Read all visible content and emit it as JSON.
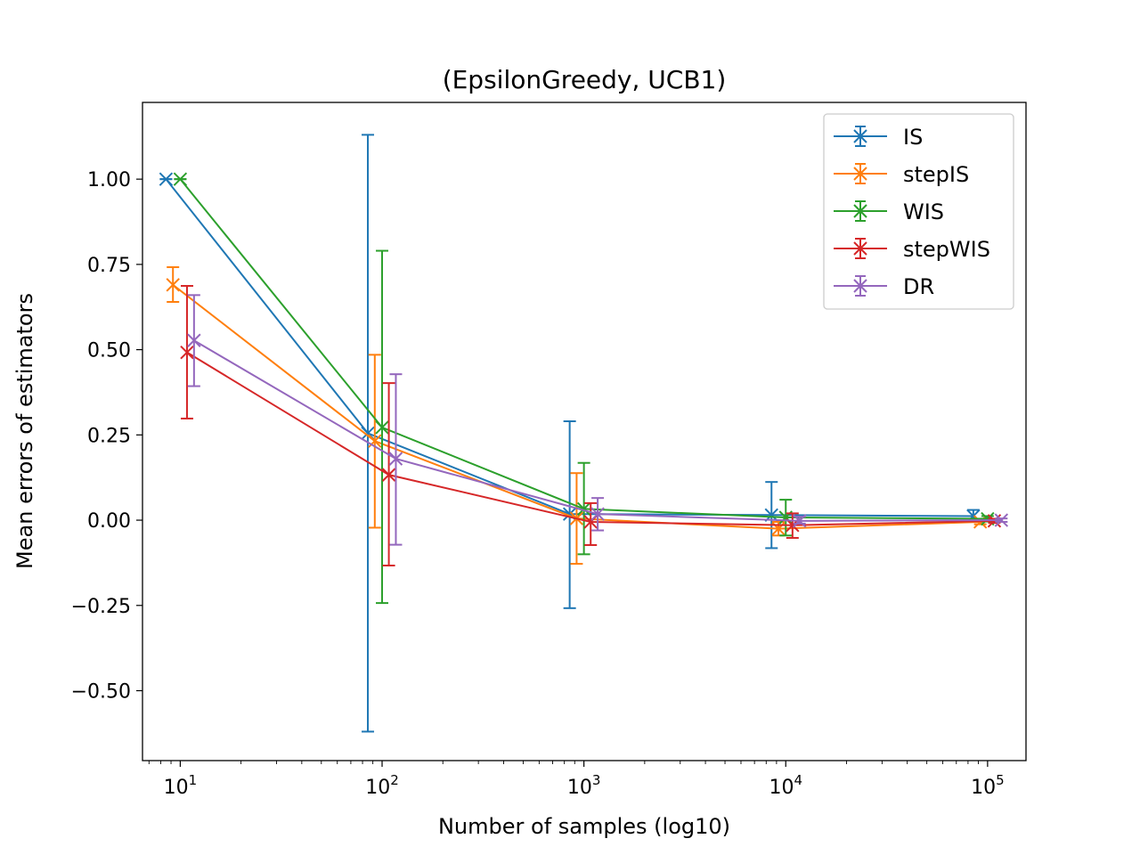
{
  "chart_data": {
    "type": "line",
    "title": "(EpsilonGreedy, UCB1)",
    "xlabel": "Number of samples (log10)",
    "ylabel": "Mean errors of estimators",
    "xscale": "log",
    "xlim": [
      6.5,
      155000
    ],
    "ylim": [
      -0.705,
      1.225
    ],
    "x_ticks": [
      {
        "base": "10",
        "exp": "1",
        "value": 10
      },
      {
        "base": "10",
        "exp": "2",
        "value": 100
      },
      {
        "base": "10",
        "exp": "3",
        "value": 1000
      },
      {
        "base": "10",
        "exp": "4",
        "value": 10000
      },
      {
        "base": "10",
        "exp": "5",
        "value": 100000
      }
    ],
    "y_ticks": [
      {
        "label": "1.00",
        "value": 1.0
      },
      {
        "label": "0.75",
        "value": 0.75
      },
      {
        "label": "0.50",
        "value": 0.5
      },
      {
        "label": "0.25",
        "value": 0.25
      },
      {
        "label": "0.00",
        "value": 0.0
      },
      {
        "label": "−0.25",
        "value": -0.25
      },
      {
        "label": "−0.50",
        "value": -0.5
      }
    ],
    "legend_position": "top-right",
    "grid": false,
    "series": [
      {
        "name": "IS",
        "color": "#1f77b4",
        "x": [
          8.5,
          85,
          850,
          8500,
          85000
        ],
        "y": [
          1.0,
          0.255,
          0.018,
          0.015,
          0.012
        ],
        "err_low": [
          1.0,
          -0.62,
          -0.258,
          -0.082,
          -0.002
        ],
        "err_high": [
          1.0,
          1.13,
          0.29,
          0.112,
          0.03
        ]
      },
      {
        "name": "stepIS",
        "color": "#ff7f0e",
        "x": [
          9.2,
          92,
          920,
          9200,
          92000
        ],
        "y": [
          0.69,
          0.232,
          0.005,
          -0.025,
          -0.005
        ],
        "err_low": [
          0.64,
          -0.022,
          -0.128,
          -0.045,
          -0.012
        ],
        "err_high": [
          0.742,
          0.485,
          0.138,
          -0.005,
          0.002
        ]
      },
      {
        "name": "WIS",
        "color": "#2ca02c",
        "x": [
          10,
          100,
          1000,
          10000,
          100000
        ],
        "y": [
          1.0,
          0.272,
          0.033,
          0.008,
          0.004
        ],
        "err_low": [
          1.0,
          -0.243,
          -0.1,
          -0.045,
          -0.004
        ],
        "err_high": [
          1.0,
          0.79,
          0.168,
          0.06,
          0.012
        ]
      },
      {
        "name": "stepWIS",
        "color": "#d62728",
        "x": [
          10.8,
          108,
          1080,
          10800,
          108000
        ],
        "y": [
          0.492,
          0.133,
          -0.005,
          -0.015,
          -0.002
        ],
        "err_low": [
          0.298,
          -0.133,
          -0.073,
          -0.052,
          -0.008
        ],
        "err_high": [
          0.687,
          0.402,
          0.05,
          0.02,
          0.004
        ]
      },
      {
        "name": "DR",
        "color": "#9467bd",
        "x": [
          11.7,
          117,
          1170,
          11700,
          117000
        ],
        "y": [
          0.527,
          0.18,
          0.018,
          -0.002,
          0.0
        ],
        "err_low": [
          0.393,
          -0.072,
          -0.03,
          -0.01,
          -0.005
        ],
        "err_high": [
          0.66,
          0.428,
          0.065,
          0.01,
          0.005
        ]
      }
    ]
  }
}
